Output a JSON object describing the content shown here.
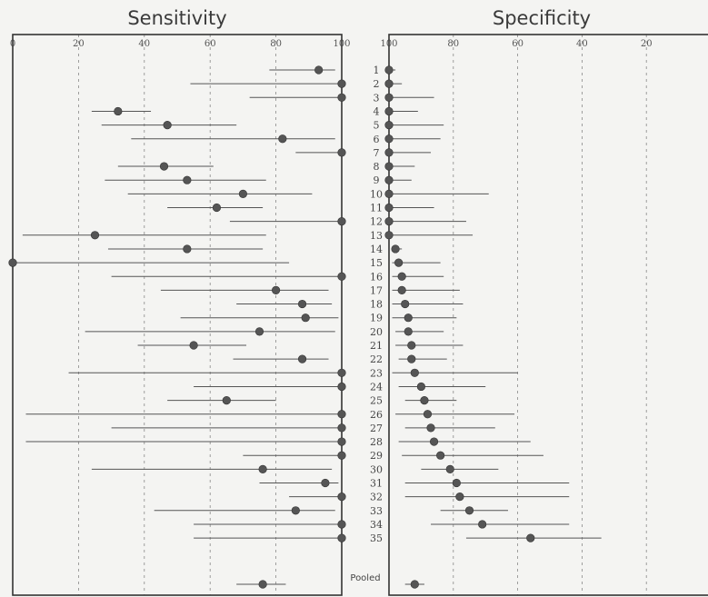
{
  "chart_data": [
    {
      "type": "forest",
      "title": "Sensitivity",
      "xlim": [
        0,
        100
      ],
      "axis_direction": "ascending",
      "ticks": [
        0,
        20,
        40,
        60,
        80,
        100
      ],
      "grid": true,
      "studies": [
        {
          "label": "1",
          "est": 93,
          "lo": 78,
          "hi": 98
        },
        {
          "label": "2",
          "est": 100,
          "lo": 54,
          "hi": 100
        },
        {
          "label": "3",
          "est": 100,
          "lo": 72,
          "hi": 100
        },
        {
          "label": "4",
          "est": 32,
          "lo": 24,
          "hi": 42
        },
        {
          "label": "5",
          "est": 47,
          "lo": 27,
          "hi": 68
        },
        {
          "label": "6",
          "est": 82,
          "lo": 36,
          "hi": 98
        },
        {
          "label": "7",
          "est": 100,
          "lo": 86,
          "hi": 100
        },
        {
          "label": "8",
          "est": 46,
          "lo": 32,
          "hi": 61
        },
        {
          "label": "9",
          "est": 53,
          "lo": 28,
          "hi": 77
        },
        {
          "label": "10",
          "est": 70,
          "lo": 35,
          "hi": 91
        },
        {
          "label": "11",
          "est": 62,
          "lo": 47,
          "hi": 76
        },
        {
          "label": "12",
          "est": 100,
          "lo": 66,
          "hi": 100
        },
        {
          "label": "13",
          "est": 25,
          "lo": 3,
          "hi": 77
        },
        {
          "label": "14",
          "est": 53,
          "lo": 29,
          "hi": 76
        },
        {
          "label": "15",
          "est": 0,
          "lo": 0,
          "hi": 84
        },
        {
          "label": "16",
          "est": 100,
          "lo": 30,
          "hi": 100
        },
        {
          "label": "17",
          "est": 80,
          "lo": 45,
          "hi": 96
        },
        {
          "label": "18",
          "est": 88,
          "lo": 68,
          "hi": 97
        },
        {
          "label": "19",
          "est": 89,
          "lo": 51,
          "hi": 99
        },
        {
          "label": "20",
          "est": 75,
          "lo": 22,
          "hi": 98
        },
        {
          "label": "21",
          "est": 55,
          "lo": 38,
          "hi": 71
        },
        {
          "label": "22",
          "est": 88,
          "lo": 67,
          "hi": 96
        },
        {
          "label": "23",
          "est": 100,
          "lo": 17,
          "hi": 100
        },
        {
          "label": "24",
          "est": 100,
          "lo": 55,
          "hi": 100
        },
        {
          "label": "25",
          "est": 65,
          "lo": 47,
          "hi": 80
        },
        {
          "label": "26",
          "est": 100,
          "lo": 4,
          "hi": 100
        },
        {
          "label": "27",
          "est": 100,
          "lo": 30,
          "hi": 100
        },
        {
          "label": "28",
          "est": 100,
          "lo": 4,
          "hi": 100
        },
        {
          "label": "29",
          "est": 100,
          "lo": 70,
          "hi": 100
        },
        {
          "label": "30",
          "est": 76,
          "lo": 24,
          "hi": 97
        },
        {
          "label": "31",
          "est": 95,
          "lo": 75,
          "hi": 99
        },
        {
          "label": "32",
          "est": 100,
          "lo": 84,
          "hi": 100
        },
        {
          "label": "33",
          "est": 86,
          "lo": 43,
          "hi": 98
        },
        {
          "label": "34",
          "est": 100,
          "lo": 55,
          "hi": 100
        },
        {
          "label": "35",
          "est": 100,
          "lo": 55,
          "hi": 100
        }
      ],
      "pooled": {
        "label": "Pooled",
        "est": 76,
        "lo": 68,
        "hi": 83
      }
    },
    {
      "type": "forest",
      "title": "Specificity",
      "xlim": [
        100,
        0
      ],
      "axis_direction": "descending",
      "ticks": [
        100,
        80,
        60,
        40,
        20
      ],
      "grid": true,
      "studies": [
        {
          "label": "1",
          "est": 100,
          "lo": 98,
          "hi": 100
        },
        {
          "label": "2",
          "est": 100,
          "lo": 96,
          "hi": 100
        },
        {
          "label": "3",
          "est": 100,
          "lo": 86,
          "hi": 100
        },
        {
          "label": "4",
          "est": 100,
          "lo": 91,
          "hi": 100
        },
        {
          "label": "5",
          "est": 100,
          "lo": 83,
          "hi": 100
        },
        {
          "label": "6",
          "est": 100,
          "lo": 84,
          "hi": 100
        },
        {
          "label": "7",
          "est": 100,
          "lo": 87,
          "hi": 100
        },
        {
          "label": "8",
          "est": 100,
          "lo": 92,
          "hi": 100
        },
        {
          "label": "9",
          "est": 100,
          "lo": 93,
          "hi": 100
        },
        {
          "label": "10",
          "est": 100,
          "lo": 69,
          "hi": 100
        },
        {
          "label": "11",
          "est": 100,
          "lo": 86,
          "hi": 100
        },
        {
          "label": "12",
          "est": 100,
          "lo": 76,
          "hi": 100
        },
        {
          "label": "13",
          "est": 100,
          "lo": 74,
          "hi": 100
        },
        {
          "label": "14",
          "est": 98,
          "lo": 96,
          "hi": 99
        },
        {
          "label": "15",
          "est": 97,
          "lo": 84,
          "hi": 99
        },
        {
          "label": "16",
          "est": 96,
          "lo": 83,
          "hi": 99
        },
        {
          "label": "17",
          "est": 96,
          "lo": 78,
          "hi": 99
        },
        {
          "label": "18",
          "est": 95,
          "lo": 77,
          "hi": 99
        },
        {
          "label": "19",
          "est": 94,
          "lo": 79,
          "hi": 99
        },
        {
          "label": "20",
          "est": 94,
          "lo": 83,
          "hi": 98
        },
        {
          "label": "21",
          "est": 93,
          "lo": 77,
          "hi": 98
        },
        {
          "label": "22",
          "est": 93,
          "lo": 82,
          "hi": 97
        },
        {
          "label": "23",
          "est": 92,
          "lo": 60,
          "hi": 99
        },
        {
          "label": "24",
          "est": 90,
          "lo": 70,
          "hi": 97
        },
        {
          "label": "25",
          "est": 89,
          "lo": 79,
          "hi": 95
        },
        {
          "label": "26",
          "est": 88,
          "lo": 61,
          "hi": 98
        },
        {
          "label": "27",
          "est": 87,
          "lo": 67,
          "hi": 95
        },
        {
          "label": "28",
          "est": 86,
          "lo": 56,
          "hi": 97
        },
        {
          "label": "29",
          "est": 84,
          "lo": 52,
          "hi": 96
        },
        {
          "label": "30",
          "est": 81,
          "lo": 66,
          "hi": 90
        },
        {
          "label": "31",
          "est": 79,
          "lo": 44,
          "hi": 95
        },
        {
          "label": "32",
          "est": 78,
          "lo": 44,
          "hi": 95
        },
        {
          "label": "33",
          "est": 75,
          "lo": 63,
          "hi": 84
        },
        {
          "label": "34",
          "est": 71,
          "lo": 44,
          "hi": 87
        },
        {
          "label": "35",
          "est": 56,
          "lo": 34,
          "hi": 76
        }
      ],
      "pooled": {
        "label": "Pooled",
        "est": 92,
        "lo": 89,
        "hi": 95
      }
    }
  ]
}
